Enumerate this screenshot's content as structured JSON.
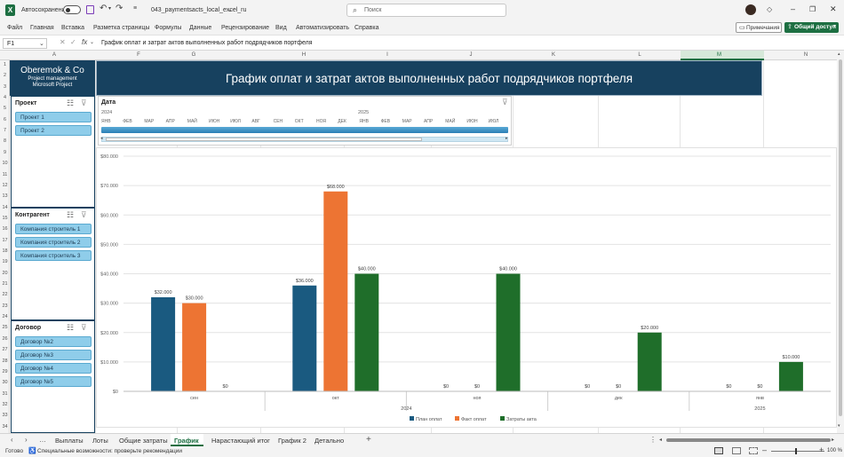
{
  "titlebar": {
    "autosave_label": "Автосохранение",
    "filename": "043_paymentsacts_local_excel_ru",
    "search_placeholder": "Поиск"
  },
  "ribbon": {
    "menu": [
      "Файл",
      "Главная",
      "Вставка",
      "Разметка страницы",
      "Формулы",
      "Данные",
      "Рецензирование",
      "Вид",
      "Автоматизировать",
      "Справка"
    ],
    "notes_label": "Примечания",
    "share_label": "Общий доступ"
  },
  "formula_bar": {
    "cell_ref": "F1",
    "fx_label": "fx",
    "content": "График оплат и затрат актов выполненных работ подрядчиков портфеля"
  },
  "columns": [
    "A",
    "F",
    "G",
    "H",
    "I",
    "J",
    "K",
    "L",
    "M",
    "N"
  ],
  "rows": [
    "1",
    "2",
    "3",
    "4",
    "5",
    "6",
    "7",
    "8",
    "9",
    "10",
    "11",
    "12",
    "13",
    "14",
    "15",
    "16",
    "17",
    "18",
    "19",
    "20",
    "21",
    "22",
    "23",
    "24",
    "25",
    "26",
    "27",
    "28",
    "29",
    "30",
    "31",
    "32",
    "33",
    "34"
  ],
  "brand": {
    "name": "Oberemok & Co",
    "line1": "Project management",
    "line2": "Microsoft Project"
  },
  "banner_title": "График оплат и затрат актов выполненных работ подрядчиков портфеля",
  "slicers": [
    {
      "title": "Проект",
      "items": [
        "Проект 1",
        "Проект 2"
      ]
    },
    {
      "title": "Контрагент",
      "items": [
        "Компания строитель 1",
        "Компания строитель 2",
        "Компания строитель 3"
      ]
    },
    {
      "title": "Договор",
      "items": [
        "Договор №2",
        "Договор №3",
        "Договор №4",
        "Договор №5"
      ]
    }
  ],
  "timeline": {
    "title": "Дата",
    "year1": "2024",
    "year2": "2025",
    "months": [
      "ЯНВ",
      "ФЕВ",
      "МАР",
      "АПР",
      "МАЙ",
      "ИЮН",
      "ИЮЛ",
      "АВГ",
      "СЕН",
      "ОКТ",
      "НОЯ",
      "ДЕК",
      "ЯНВ",
      "ФЕВ",
      "МАР",
      "АПР",
      "МАЙ",
      "ИЮН",
      "ИЮЛ"
    ]
  },
  "chart_data": {
    "type": "bar",
    "categories": [
      "сен",
      "окт",
      "ноя",
      "дек",
      "янв"
    ],
    "category_years": [
      "2024",
      "2024",
      "2024",
      "2024",
      "2025"
    ],
    "year_groups": [
      {
        "label": "2024",
        "span": [
          0,
          3
        ]
      },
      {
        "label": "2025",
        "span": [
          4,
          4
        ]
      }
    ],
    "y_ticks": [
      "$0",
      "$10.000",
      "$20.000",
      "$30.000",
      "$40.000",
      "$50.000",
      "$60.000",
      "$70.000",
      "$80.000"
    ],
    "ylim": [
      0,
      80000
    ],
    "series": [
      {
        "name": "План оплат",
        "color": "#1a5a80",
        "values": [
          32000,
          36000,
          0,
          0,
          0
        ],
        "labels": [
          "$32.000",
          "$36.000",
          "$0",
          "$0",
          "$0"
        ]
      },
      {
        "name": "Факт оплат",
        "color": "#ed7433",
        "values": [
          30000,
          68000,
          0,
          0,
          0
        ],
        "labels": [
          "$30.000",
          "$68.000",
          "$0",
          "$0",
          "$0"
        ]
      },
      {
        "name": "Затраты акта",
        "color": "#1f6e2a",
        "values": [
          0,
          40000,
          40000,
          20000,
          10000
        ],
        "labels": [
          "$0",
          "$40.000",
          "$40.000",
          "$20.000",
          "$10.000"
        ]
      }
    ],
    "legend_position": "bottom",
    "grid": true
  },
  "tabs": [
    "Выплаты",
    "Лоты",
    "Общие затраты",
    "График 1",
    "Нарастающий итог",
    "График 2",
    "Детально"
  ],
  "active_tab": "График 1",
  "status": {
    "ready": "Готово",
    "accessibility": "Специальные возможности: проверьте рекомендации",
    "zoom": "100 %"
  }
}
